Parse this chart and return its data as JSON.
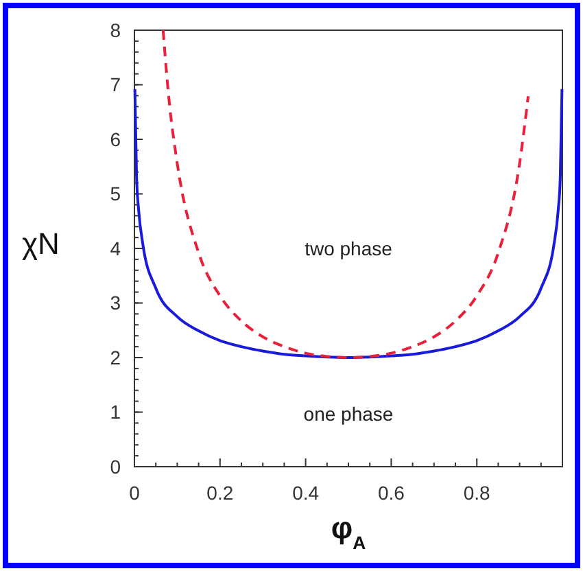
{
  "chart_data": {
    "type": "line",
    "xlabel": "φ$_{A}$",
    "ylabel": "χN",
    "xlim": [
      0,
      1
    ],
    "ylim": [
      0,
      8
    ],
    "xticks": [
      0,
      {
        "value": 0.05,
        "label": null
      },
      {
        "value": 0.1,
        "label": null
      },
      {
        "value": 0.15,
        "label": null
      },
      0.2,
      {
        "value": 0.25,
        "label": null
      },
      {
        "value": 0.3,
        "label": null
      },
      {
        "value": 0.35,
        "label": null
      },
      0.4,
      {
        "value": 0.45,
        "label": null
      },
      {
        "value": 0.5,
        "label": null
      },
      {
        "value": 0.55,
        "label": null
      },
      0.6,
      {
        "value": 0.65,
        "label": null
      },
      {
        "value": 0.7,
        "label": null
      },
      {
        "value": 0.75,
        "label": null
      },
      0.8,
      {
        "value": 0.85,
        "label": null
      },
      {
        "value": 0.9,
        "label": null
      },
      {
        "value": 0.95,
        "label": null
      }
    ],
    "yticks": [
      0,
      1,
      2,
      3,
      4,
      5,
      6,
      7,
      8
    ],
    "grid": false,
    "marker": "none",
    "series": [
      {
        "color": "#1a1adb",
        "line_style": "solid",
        "x": [
          0.001,
          0.005,
          0.01,
          0.02,
          0.05,
          0.1,
          0.15,
          0.2,
          0.25,
          0.3,
          0.35,
          0.4,
          0.45,
          0.5,
          0.55,
          0.6,
          0.65,
          0.7,
          0.75,
          0.8,
          0.85,
          0.9,
          0.95,
          0.98,
          0.99,
          0.995,
          0.999
        ],
        "values": [
          6.92,
          5.31,
          4.69,
          4.06,
          3.27,
          2.75,
          2.49,
          2.31,
          2.2,
          2.12,
          2.06,
          2.03,
          2.01,
          2.0,
          2.01,
          2.03,
          2.06,
          2.12,
          2.2,
          2.31,
          2.49,
          2.75,
          3.27,
          4.06,
          4.69,
          5.31,
          6.92
        ]
      },
      {
        "color": "#e8203a",
        "line_style": "dashed",
        "x": [
          0.067,
          0.08,
          0.1,
          0.15,
          0.2,
          0.25,
          0.3,
          0.35,
          0.4,
          0.45,
          0.5,
          0.55,
          0.6,
          0.65,
          0.7,
          0.75,
          0.8,
          0.85,
          0.9,
          0.92
        ],
        "values": [
          8.0,
          6.79,
          5.56,
          3.92,
          3.13,
          2.67,
          2.38,
          2.2,
          2.08,
          2.02,
          2.0,
          2.02,
          2.08,
          2.2,
          2.38,
          2.67,
          3.13,
          3.92,
          5.56,
          6.79
        ]
      }
    ],
    "annotations": [
      "two phase",
      "one phase"
    ]
  }
}
